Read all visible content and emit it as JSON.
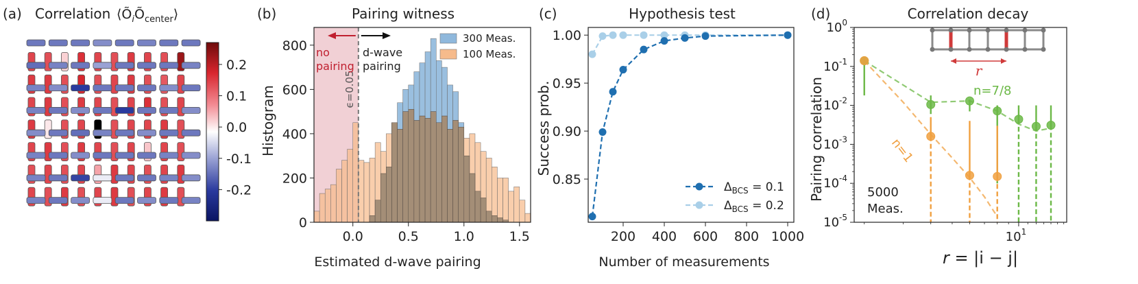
{
  "figure": {
    "panel_letters": [
      "(a)",
      "(b)",
      "(c)",
      "(d)"
    ]
  },
  "chart_data": [
    {
      "type": "heatmap",
      "panel": "(a)",
      "title": "Correlation ⟨Õ_i Õ_center⟩",
      "title_text": "Correlation",
      "title_math": "⟨Õ",
      "title_sub_i": "i",
      "title_mid": "Õ",
      "title_sub_center": "center",
      "title_close": "⟩",
      "colorbar": {
        "min": -0.3,
        "max": 0.27,
        "ticks": [
          0.2,
          0.1,
          0.0,
          -0.1,
          -0.2
        ],
        "tick_labels": [
          "0.2",
          "0.1",
          "0.0",
          "-0.1",
          "-0.2"
        ],
        "colormap": "seismic-like (blue negative, red positive)"
      },
      "note": "Bond correlation map on a ladder lattice; horizontal bonds mostly negative (blue), vertical bonds mostly positive (red); center bond marked black.",
      "rows": [
        {
          "kind": "h",
          "values": [
            -0.14,
            -0.14,
            -0.14,
            -0.12,
            -0.14,
            -0.13,
            -0.14,
            -0.14
          ]
        },
        {
          "kind": "v",
          "values": [
            0.17,
            0.16,
            0.04,
            0.19,
            0.17,
            0.16,
            0.18,
            0.17,
            0.16,
            0.24
          ]
        },
        {
          "kind": "h",
          "values": [
            -0.15,
            -0.13,
            -0.14,
            -0.1,
            -0.14,
            -0.14,
            -0.14,
            -0.13
          ]
        },
        {
          "kind": "v",
          "values": [
            0.18,
            0.18,
            0.16,
            0.2,
            0.16,
            0.17,
            0.18,
            0.16,
            0.15,
            0.17
          ]
        },
        {
          "kind": "h",
          "values": [
            -0.13,
            -0.12,
            -0.2,
            -0.14,
            -0.14,
            -0.14,
            -0.12,
            -0.14
          ]
        },
        {
          "kind": "v",
          "values": [
            0.17,
            0.18,
            0.16,
            0.18,
            0.17,
            0.16,
            0.17,
            0.19,
            0.16,
            0.17
          ]
        },
        {
          "kind": "h",
          "values": [
            -0.13,
            -0.14,
            -0.12,
            -0.14,
            -0.2,
            -0.14,
            -0.14,
            -0.12
          ]
        },
        {
          "kind": "v",
          "values": [
            0.18,
            0.02,
            0.16,
            0.17,
            "center",
            0.16,
            0.17,
            0.17,
            0.18,
            0.16
          ]
        },
        {
          "kind": "h",
          "values": [
            -0.12,
            -0.14,
            -0.15,
            -0.13,
            -0.14,
            -0.12,
            -0.14,
            -0.14
          ]
        },
        {
          "kind": "v",
          "values": [
            0.17,
            0.18,
            0.16,
            0.18,
            0.17,
            0.16,
            0.17,
            0.05,
            0.17,
            0.16
          ]
        },
        {
          "kind": "h",
          "values": [
            -0.13,
            -0.14,
            -0.12,
            -0.14,
            -0.14,
            -0.14,
            -0.13,
            -0.12
          ]
        },
        {
          "kind": "v",
          "values": [
            0.16,
            0.17,
            0.16,
            0.17,
            0.08,
            0.18,
            0.17,
            0.16,
            0.17,
            0.18
          ]
        },
        {
          "kind": "h",
          "values": [
            -0.13,
            -0.14,
            -0.19,
            -0.02,
            -0.14,
            -0.14,
            -0.13,
            -0.12
          ]
        },
        {
          "kind": "v",
          "values": [
            0.17,
            0.16,
            0.18,
            0.16,
            0.17,
            0.18,
            0.16,
            0.17,
            0.18,
            0.16
          ]
        },
        {
          "kind": "h",
          "values": [
            -0.13,
            -0.14,
            -0.12,
            -0.02,
            -0.14,
            -0.12,
            -0.14,
            -0.13
          ]
        }
      ]
    },
    {
      "type": "bar",
      "panel": "(b)",
      "title": "Pairing witness",
      "xlabel": "Estimated d-wave pairing",
      "ylabel": "Histogram",
      "xlim": [
        -0.35,
        1.6
      ],
      "ylim": [
        0,
        880
      ],
      "xticks": [
        0.0,
        0.5,
        1.0,
        1.5
      ],
      "xtick_labels": [
        "0.0",
        "0.5",
        "1.0",
        "1.5"
      ],
      "yticks": [
        0,
        200,
        400,
        600,
        800
      ],
      "ytick_labels": [
        "0",
        "200",
        "400",
        "600",
        "800"
      ],
      "bin_width": 0.05,
      "bin_start": -0.35,
      "threshold_label": "ϵ=0.05",
      "threshold": 0.05,
      "no_pairing_label": [
        "no",
        "pairing"
      ],
      "dwave_label": [
        "d-wave",
        "pairing"
      ],
      "series": [
        {
          "name": "300 Meas.",
          "color": "#8fb8dc",
          "values": [
            0,
            0,
            0,
            0,
            0,
            0,
            0,
            0,
            0,
            0,
            30,
            100,
            220,
            250,
            450,
            540,
            600,
            620,
            680,
            720,
            770,
            830,
            730,
            700,
            620,
            590,
            450,
            300,
            220,
            140,
            110,
            50,
            30,
            20,
            10,
            0,
            0,
            0,
            0
          ]
        },
        {
          "name": "100 Meas.",
          "color": "#f6bb8c",
          "values": [
            50,
            130,
            150,
            170,
            240,
            280,
            330,
            450,
            280,
            270,
            290,
            360,
            320,
            400,
            450,
            420,
            500,
            510,
            460,
            480,
            470,
            500,
            450,
            480,
            420,
            460,
            430,
            380,
            400,
            360,
            320,
            290,
            250,
            200,
            200,
            140,
            160,
            100,
            40
          ]
        }
      ]
    },
    {
      "type": "line",
      "panel": "(c)",
      "title": "Hypothesis test",
      "xlabel": "Number of measurements",
      "ylabel": "Success prob.",
      "xlim": [
        30,
        1030
      ],
      "ylim": [
        0.805,
        1.008
      ],
      "xticks": [
        200,
        400,
        600,
        800,
        1000
      ],
      "xtick_labels": [
        "200",
        "400",
        "600",
        "800",
        "1000"
      ],
      "yticks": [
        0.85,
        0.9,
        0.95,
        1.0
      ],
      "ytick_labels": [
        "0.85",
        "0.90",
        "0.95",
        "1.00"
      ],
      "series": [
        {
          "name": "Δ_BCS = 0.1",
          "legend_main": "Δ",
          "legend_sub": "BCS",
          "legend_rest": " = 0.1",
          "color": "#1f6fb0",
          "x": [
            50,
            100,
            150,
            200,
            300,
            400,
            500,
            600,
            1000
          ],
          "y": [
            0.811,
            0.899,
            0.941,
            0.964,
            0.985,
            0.994,
            0.997,
            0.999,
            1.0
          ]
        },
        {
          "name": "Δ_BCS = 0.2",
          "legend_main": "Δ",
          "legend_sub": "BCS",
          "legend_rest": " = 0.2",
          "color": "#a9cfe8",
          "x": [
            50,
            100,
            150,
            200,
            300,
            400,
            500,
            600,
            1000
          ],
          "y": [
            0.98,
            0.999,
            1.0,
            1.0,
            1.0,
            1.0,
            1.0,
            1.0,
            1.0
          ]
        }
      ]
    },
    {
      "type": "scatter",
      "panel": "(d)",
      "title": "Correlation decay",
      "xlabel": "r = |i − j|",
      "xlabel_prefix": "r",
      "xlabel_rest": " = |i − j|",
      "ylabel": "Pairing correlation",
      "xscale": "log",
      "yscale": "log",
      "xlim": [
        1.8,
        16.5
      ],
      "ylim_exp": [
        -5,
        0
      ],
      "xtick_labels": [
        {
          "base": "10",
          "exp": "1",
          "at": 10
        }
      ],
      "ytick_labels": [
        {
          "base": "10",
          "exp": "0",
          "at": 0
        },
        {
          "base": "10",
          "exp": "-1",
          "at": -1
        },
        {
          "base": "10",
          "exp": "-2",
          "at": -2
        },
        {
          "base": "10",
          "exp": "-3",
          "at": -3
        },
        {
          "base": "10",
          "exp": "-4",
          "at": -4
        },
        {
          "base": "10",
          "exp": "-5",
          "at": -5
        }
      ],
      "annotation": [
        "5000",
        "Meas."
      ],
      "inset_label": "r",
      "series": [
        {
          "name": "n=7/8",
          "color": "#6bb846",
          "x": [
            2,
            4,
            6,
            8,
            10,
            12,
            14
          ],
          "y": [
            0.14,
            0.0105,
            0.013,
            0.0072,
            0.0044,
            0.0029,
            0.0031
          ],
          "err_low_to_floor": [
            false,
            false,
            false,
            false,
            true,
            true,
            true
          ],
          "err_upper": [
            0.018,
            0.018,
            0.014,
            0.01,
            0.01,
            0.01,
            0.01
          ],
          "err_lower": [
            0.12,
            0.006,
            0.007,
            0.0001,
            1e-05,
            1e-05,
            1e-05
          ],
          "theory_x": [
            2,
            4,
            6,
            8,
            10,
            12,
            14
          ],
          "theory_y": [
            0.14,
            0.012,
            0.013,
            0.0072,
            0.0033,
            0.0022,
            0.0026
          ]
        },
        {
          "name": "n=1",
          "color": "#f0a040",
          "x": [
            2,
            4,
            6,
            8
          ],
          "y": [
            0.14,
            0.0016,
            0.00016,
            0.00015
          ],
          "err_upper": [
            0.16,
            0.005,
            0.004,
            0.003
          ],
          "err_lower": [
            0.12,
            1e-05,
            1e-05,
            1e-05
          ],
          "theory_x": [
            2,
            3,
            4,
            5,
            6,
            7,
            8
          ],
          "theory_y": [
            0.14,
            0.012,
            0.0018,
            0.00045,
            0.00014,
            4.5e-05,
            1.4e-05
          ]
        }
      ]
    }
  ]
}
